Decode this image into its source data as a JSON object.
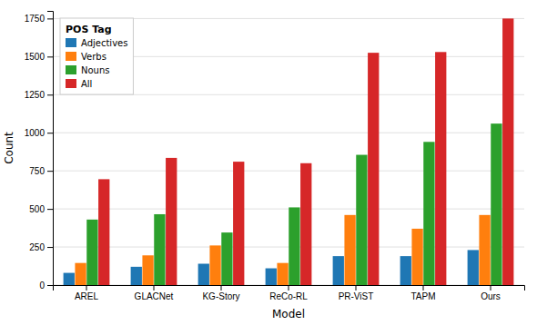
{
  "chart_data": {
    "type": "bar",
    "categories": [
      "AREL",
      "GLACNet",
      "KG-Story",
      "ReCo-RL",
      "PR-ViST",
      "TAPM",
      "Ours"
    ],
    "series": [
      {
        "name": "Adjectives",
        "values": [
          80,
          120,
          140,
          110,
          190,
          190,
          230
        ]
      },
      {
        "name": "Verbs",
        "values": [
          145,
          195,
          260,
          145,
          460,
          370,
          460
        ]
      },
      {
        "name": "Nouns",
        "values": [
          430,
          465,
          345,
          510,
          855,
          940,
          1060
        ]
      },
      {
        "name": "All",
        "values": [
          695,
          835,
          810,
          800,
          1525,
          1530,
          1750
        ]
      }
    ],
    "xlabel": "Model",
    "ylabel": "Count",
    "legend_title": "POS Tag",
    "ylim": [
      0,
      1800
    ],
    "yticks": [
      0,
      250,
      500,
      750,
      1000,
      1250,
      1500,
      1750
    ],
    "grid": true,
    "legend": "upper left"
  }
}
